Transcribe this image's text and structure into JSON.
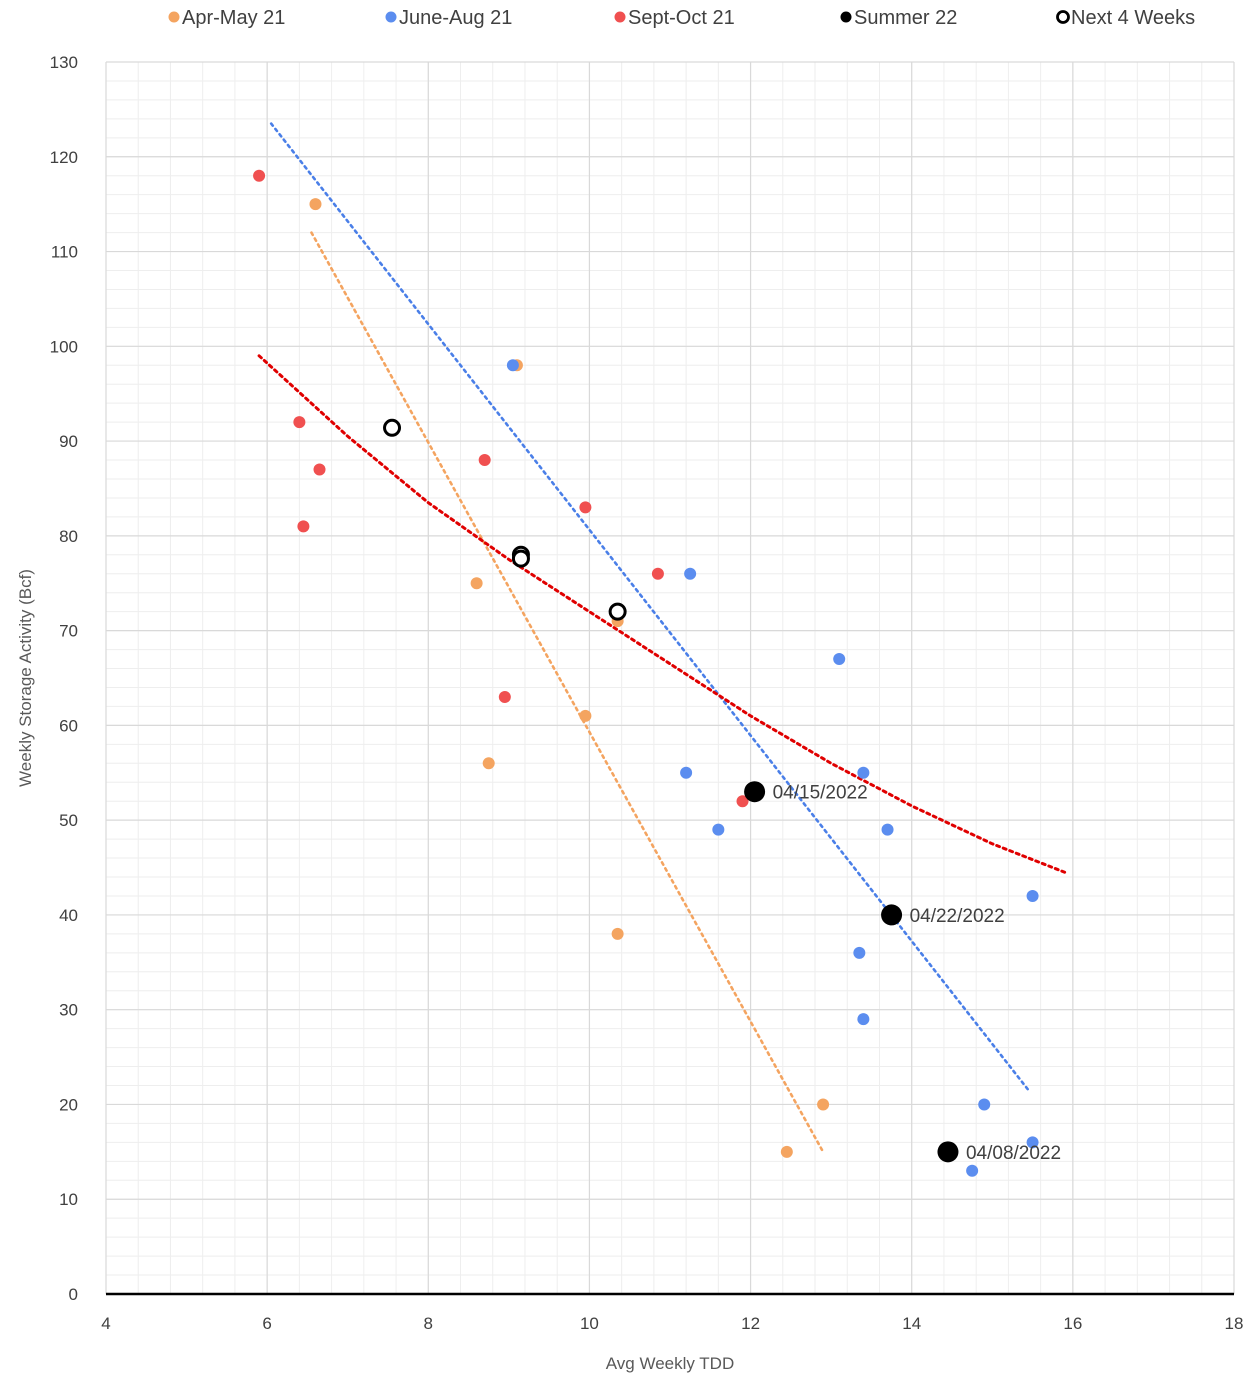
{
  "chart_data": {
    "type": "scatter",
    "title": "",
    "xlabel": "Avg Weekly TDD",
    "ylabel": "Weekly Storage  Activity (Bcf)",
    "xlim": [
      4,
      18
    ],
    "ylim": [
      0,
      130
    ],
    "x_ticks": [
      4,
      6,
      8,
      10,
      12,
      14,
      16,
      18
    ],
    "y_ticks": [
      0,
      10,
      20,
      30,
      40,
      50,
      60,
      70,
      80,
      90,
      100,
      110,
      120,
      130
    ],
    "grid": true,
    "minor_grid": true,
    "legend_position": "top",
    "series": [
      {
        "name": "Apr-May 21",
        "color": "#F4A460",
        "marker": "filled",
        "points": [
          [
            6.6,
            115
          ],
          [
            9.1,
            98
          ],
          [
            8.6,
            75
          ],
          [
            10.35,
            71
          ],
          [
            9.95,
            61
          ],
          [
            8.75,
            56
          ],
          [
            10.35,
            38
          ],
          [
            12.9,
            20
          ],
          [
            12.45,
            15
          ]
        ]
      },
      {
        "name": "June-Aug 21",
        "color": "#5B8DEF",
        "marker": "filled",
        "points": [
          [
            9.05,
            98
          ],
          [
            11.25,
            76
          ],
          [
            13.1,
            67
          ],
          [
            11.2,
            55
          ],
          [
            13.4,
            55
          ],
          [
            11.6,
            49
          ],
          [
            13.7,
            49
          ],
          [
            15.5,
            42
          ],
          [
            13.35,
            36
          ],
          [
            13.4,
            29
          ],
          [
            14.9,
            20
          ],
          [
            15.5,
            16
          ],
          [
            14.75,
            13
          ]
        ]
      },
      {
        "name": "Sept-Oct 21",
        "color": "#F05050",
        "marker": "filled",
        "points": [
          [
            5.9,
            118
          ],
          [
            6.4,
            92
          ],
          [
            6.65,
            87
          ],
          [
            6.45,
            81
          ],
          [
            8.7,
            88
          ],
          [
            9.95,
            83
          ],
          [
            10.85,
            76
          ],
          [
            8.95,
            63
          ],
          [
            11.9,
            52
          ]
        ]
      },
      {
        "name": "Summer 22",
        "color": "#000000",
        "marker": "filled-large",
        "points": [
          [
            12.05,
            53
          ],
          [
            13.75,
            40
          ],
          [
            14.45,
            15
          ]
        ]
      },
      {
        "name": "Next 4 Weeks",
        "color": "#000000",
        "marker": "open",
        "points": [
          [
            7.55,
            91.4
          ],
          [
            9.15,
            78
          ],
          [
            9.15,
            77.6
          ],
          [
            10.35,
            72
          ]
        ]
      }
    ],
    "trendlines": [
      {
        "series": "Apr-May 21",
        "color": "#F4A460",
        "type": "linear",
        "x_range": [
          6.55,
          12.9
        ],
        "y_range": [
          112,
          15
        ]
      },
      {
        "series": "June-Aug 21",
        "color": "#4A7FE8",
        "type": "linear",
        "x_range": [
          6.05,
          15.45
        ],
        "y_range": [
          123.5,
          21.5
        ]
      },
      {
        "series": "Sept-Oct 21",
        "color": "#E00000",
        "type": "curve",
        "points": [
          [
            5.9,
            99
          ],
          [
            7,
            90.5
          ],
          [
            8,
            83.5
          ],
          [
            9,
            77.5
          ],
          [
            10,
            72
          ],
          [
            11,
            66.5
          ],
          [
            12,
            61
          ],
          [
            13,
            56
          ],
          [
            14,
            51.5
          ],
          [
            15,
            47.5
          ],
          [
            15.9,
            44.5
          ]
        ]
      }
    ],
    "annotations": [
      {
        "text": "04/15/2022",
        "x": 12.05,
        "y": 53
      },
      {
        "text": "04/22/2022",
        "x": 13.75,
        "y": 40
      },
      {
        "text": "04/08/2022",
        "x": 14.45,
        "y": 15
      }
    ]
  }
}
